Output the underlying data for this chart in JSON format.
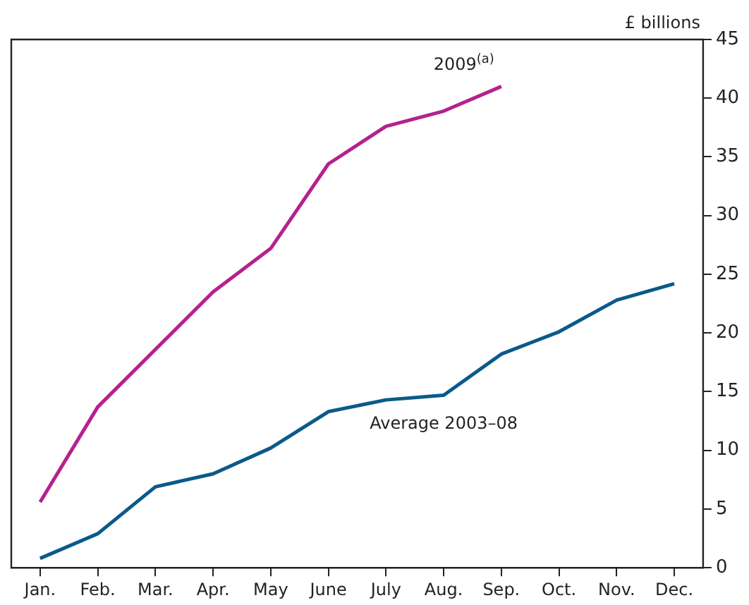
{
  "chart_data": {
    "type": "line",
    "ylabel": "£ billions",
    "categories": [
      "Jan.",
      "Feb.",
      "Mar.",
      "Apr.",
      "May",
      "June",
      "July",
      "Aug.",
      "Sep.",
      "Oct.",
      "Nov.",
      "Dec."
    ],
    "series": [
      {
        "name": "2009$^{(a)}$",
        "color": "#b5218e",
        "values": [
          5.6,
          13.7,
          18.6,
          23.5,
          27.2,
          34.4,
          37.6,
          38.9,
          41.0,
          null,
          null,
          null
        ]
      },
      {
        "name": "Average 2003–08",
        "color": "#0a5a8a",
        "values": [
          0.8,
          2.9,
          6.9,
          8.0,
          10.2,
          13.3,
          14.3,
          14.7,
          18.2,
          20.1,
          22.8,
          24.2
        ]
      }
    ],
    "ylim": [
      0,
      45
    ],
    "yticks": [
      0,
      5,
      10,
      15,
      20,
      25,
      30,
      35,
      40,
      45
    ],
    "grid": false,
    "legend": false,
    "marker": "none",
    "line_style": "solid"
  }
}
